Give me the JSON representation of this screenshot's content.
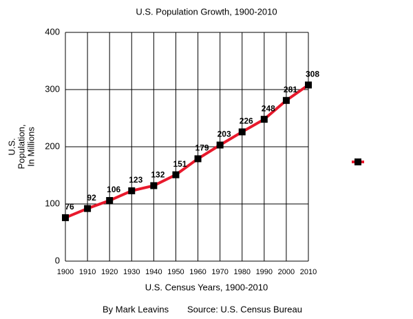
{
  "chart_data": {
    "type": "line",
    "title": "U.S. Population Growth, 1900-2010",
    "x_label": "U.S. Census Years, 1900-2010",
    "y_label": [
      "U.S.",
      "Population,",
      "In Millions"
    ],
    "credit": "By Mark Leavins",
    "source": "Source: U.S. Census Bureau",
    "x": [
      1900,
      1910,
      1920,
      1930,
      1940,
      1950,
      1960,
      1970,
      1980,
      1990,
      2000,
      2010
    ],
    "series": [
      {
        "color": "#e8192c",
        "marker_color": "#000000",
        "values": [
          76,
          92,
          106,
          123,
          132,
          151,
          179,
          203,
          226,
          248,
          281,
          308
        ]
      }
    ],
    "xlim": [
      1900,
      2010
    ],
    "xticks": [
      1900,
      1910,
      1920,
      1930,
      1940,
      1950,
      1960,
      1970,
      1980,
      1990,
      2000,
      2010
    ],
    "ylim": [
      0,
      400
    ],
    "yticks": [
      0,
      100,
      200,
      300,
      400
    ],
    "grid": true
  }
}
